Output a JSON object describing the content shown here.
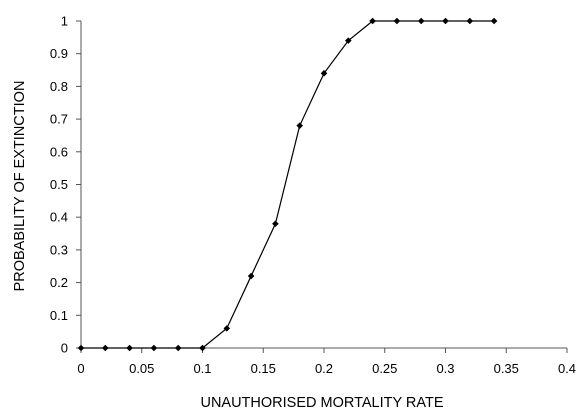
{
  "chart_data": {
    "type": "line",
    "title": "",
    "xlabel": "UNAUTHORISED MORTALITY RATE",
    "ylabel": "PROBABILITY OF EXTINCTION",
    "xlim": [
      0,
      0.4
    ],
    "ylim": [
      0,
      1
    ],
    "x_ticks": [
      "0",
      "0.05",
      "0.1",
      "0.15",
      "0.2",
      "0.25",
      "0.3",
      "0.35",
      "0.4"
    ],
    "y_ticks": [
      "0",
      "0.1",
      "0.2",
      "0.3",
      "0.4",
      "0.5",
      "0.6",
      "0.7",
      "0.8",
      "0.9",
      "1"
    ],
    "grid": false,
    "legend": "none",
    "series": [
      {
        "color": "#000000",
        "marker": "diamond",
        "x": [
          0,
          0.02,
          0.04,
          0.06,
          0.08,
          0.1,
          0.12,
          0.14,
          0.16,
          0.18,
          0.2,
          0.22,
          0.24,
          0.26,
          0.28,
          0.3,
          0.32,
          0.34
        ],
        "y": [
          0,
          0,
          0,
          0,
          0,
          0,
          0.06,
          0.22,
          0.38,
          0.68,
          0.84,
          0.94,
          1,
          1,
          1,
          1,
          1,
          1
        ]
      }
    ]
  }
}
